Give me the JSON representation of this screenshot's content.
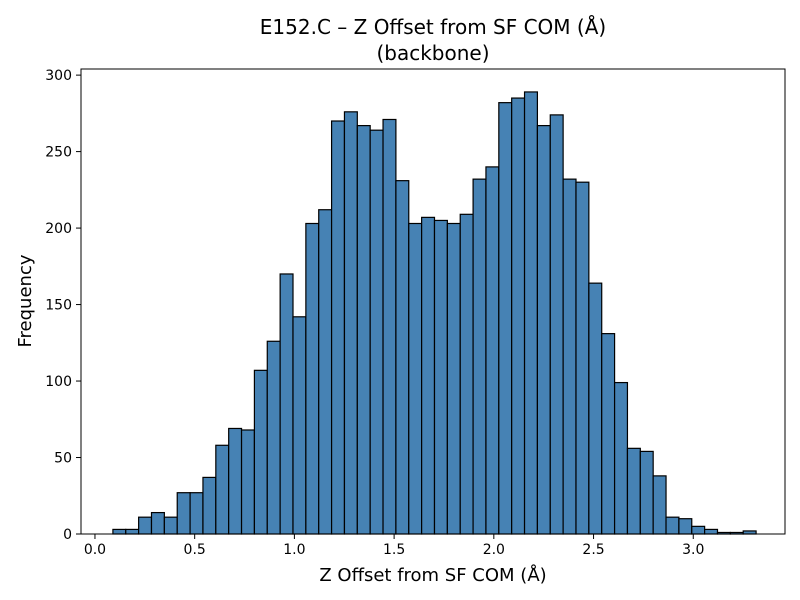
{
  "chart_data": {
    "type": "bar",
    "title": "E152.C – Z Offset from SF COM (Å)",
    "subtitle": "(backbone)",
    "xlabel": "Z Offset from SF COM (Å)",
    "ylabel": "Frequency",
    "xlim": [
      -0.07,
      3.46
    ],
    "ylim": [
      0,
      304
    ],
    "bin_start": 0.09,
    "bin_width": 0.0645,
    "values": [
      3,
      3,
      11,
      14,
      11,
      27,
      27,
      37,
      58,
      69,
      68,
      107,
      126,
      170,
      142,
      203,
      212,
      270,
      276,
      267,
      264,
      271,
      231,
      203,
      207,
      205,
      203,
      209,
      232,
      240,
      282,
      285,
      289,
      267,
      274,
      232,
      230,
      164,
      131,
      99,
      56,
      54,
      38,
      11,
      10,
      5,
      3,
      1,
      1,
      2
    ],
    "xticks": [
      {
        "value": 0.0,
        "label": "0.0"
      },
      {
        "value": 0.5,
        "label": "0.5"
      },
      {
        "value": 1.0,
        "label": "1.0"
      },
      {
        "value": 1.5,
        "label": "1.5"
      },
      {
        "value": 2.0,
        "label": "2.0"
      },
      {
        "value": 2.5,
        "label": "2.5"
      },
      {
        "value": 3.0,
        "label": "3.0"
      }
    ],
    "yticks": [
      {
        "value": 0,
        "label": "0"
      },
      {
        "value": 50,
        "label": "50"
      },
      {
        "value": 100,
        "label": "100"
      },
      {
        "value": 150,
        "label": "150"
      },
      {
        "value": 200,
        "label": "200"
      },
      {
        "value": 250,
        "label": "250"
      },
      {
        "value": 300,
        "label": "300"
      }
    ],
    "bar_color": "#4682b4",
    "edge_color": "#000000",
    "grid": false
  }
}
